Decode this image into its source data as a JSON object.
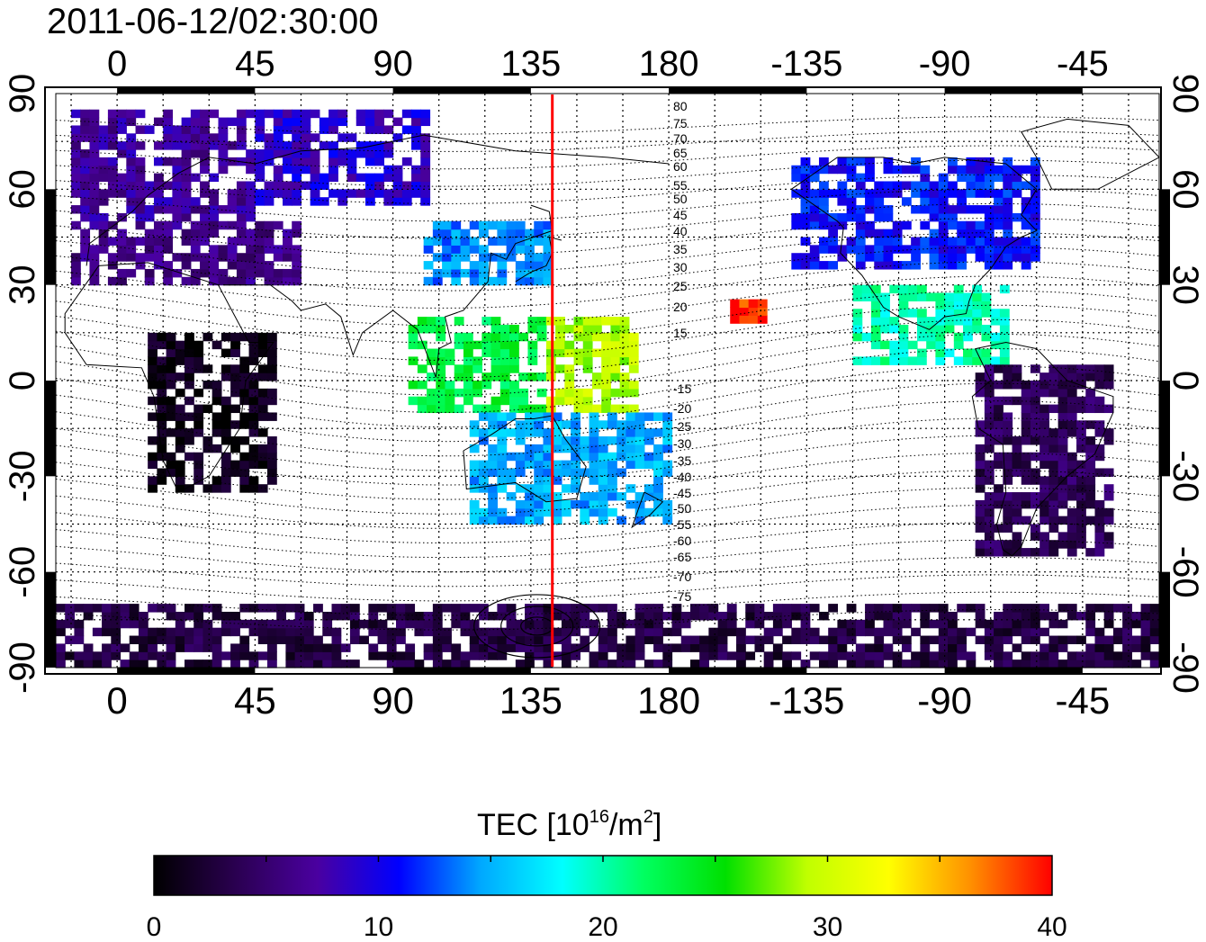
{
  "timestamp": "2011-06-12/02:30:00",
  "map": {
    "top_lon_labels": [
      "0",
      "45",
      "90",
      "135",
      "180",
      "-135",
      "-90",
      "-45"
    ],
    "bottom_lon_labels": [
      "0",
      "45",
      "90",
      "135",
      "180",
      "-135",
      "-90",
      "-45"
    ],
    "left_lat_labels": [
      "90",
      "60",
      "30",
      "0",
      "-30",
      "-60",
      "-90"
    ],
    "right_lat_labels": [
      "90",
      "60",
      "30",
      "0",
      "-30",
      "-60",
      "-90"
    ],
    "marker_longitude_deg": 142,
    "marker_color": "#ff0000",
    "magnetic_latitude_labels_north": [
      "80",
      "75",
      "70",
      "65",
      "60",
      "55",
      "50",
      "45",
      "40",
      "35",
      "30",
      "25",
      "20",
      "15"
    ],
    "magnetic_latitude_labels_south": [
      "-15",
      "-20",
      "-25",
      "-30",
      "-35",
      "-40",
      "-45",
      "-50",
      "-55",
      "-60",
      "-65",
      "-70",
      "-75"
    ]
  },
  "colorbar": {
    "title_main": "TEC  [10",
    "title_exp": "16",
    "title_unit": "/m",
    "title_unit_exp": "2",
    "title_close": "]",
    "tick_labels": [
      "0",
      "10",
      "20",
      "30",
      "40"
    ],
    "min": 0,
    "max": 40,
    "colors": [
      "#000000",
      "#2a0050",
      "#4a00a0",
      "#0000ff",
      "#00a8ff",
      "#00ffff",
      "#00ff60",
      "#00e000",
      "#c0ff00",
      "#ffff00",
      "#ff9000",
      "#ff0000"
    ]
  },
  "chart_data": {
    "type": "heatmap",
    "title": "2011-06-12/02:30:00",
    "xlabel": "",
    "ylabel": "",
    "xlim": [
      -20,
      340
    ],
    "ylim": [
      -90,
      90
    ],
    "colorbar_label": "TEC [10^16/m^2]",
    "colorbar_range": [
      0,
      40
    ],
    "marker_line_longitude": 142,
    "regions": [
      {
        "lon": [
          -15,
          45
        ],
        "lat": [
          50,
          85
        ],
        "tec": 7
      },
      {
        "lon": [
          45,
          100
        ],
        "lat": [
          55,
          85
        ],
        "tec": 9
      },
      {
        "lon": [
          -15,
          60
        ],
        "lat": [
          30,
          50
        ],
        "tec": 6
      },
      {
        "lon": [
          10,
          50
        ],
        "lat": [
          -35,
          15
        ],
        "tec": 1
      },
      {
        "lon": [
          100,
          140
        ],
        "lat": [
          30,
          50
        ],
        "tec": 14
      },
      {
        "lon": [
          95,
          140
        ],
        "lat": [
          -10,
          20
        ],
        "tec": 23
      },
      {
        "lon": [
          140,
          170
        ],
        "lat": [
          -10,
          20
        ],
        "tec": 29
      },
      {
        "lon": [
          200,
          210
        ],
        "lat": [
          18,
          25
        ],
        "tec": 39
      },
      {
        "lon": [
          115,
          180
        ],
        "lat": [
          -45,
          -10
        ],
        "tec": 15
      },
      {
        "lon": [
          220,
          300
        ],
        "lat": [
          35,
          70
        ],
        "tec": 11
      },
      {
        "lon": [
          240,
          290
        ],
        "lat": [
          5,
          30
        ],
        "tec": 20
      },
      {
        "lon": [
          280,
          325
        ],
        "lat": [
          -55,
          5
        ],
        "tec": 4
      },
      {
        "lon": [
          -20,
          340
        ],
        "lat": [
          -90,
          -70
        ],
        "tec": 3
      }
    ]
  }
}
